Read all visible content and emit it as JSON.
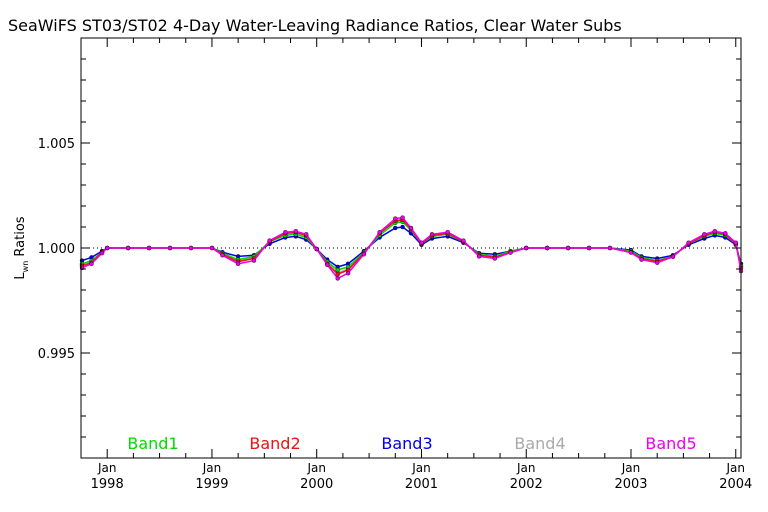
{
  "chart_data": {
    "type": "line",
    "title": "SeaWiFS ST03/ST02 4-Day Water-Leaving Radiance Ratios, Clear Water Subs",
    "ylabel": {
      "main": "L",
      "sub": "wn",
      "rest": " Ratios"
    },
    "xlabel": "",
    "ylim": [
      0.99,
      1.01
    ],
    "xlim": [
      1997.75,
      2004.05
    ],
    "yticks": [
      {
        "value": 0.995,
        "label": "0.995"
      },
      {
        "value": 1.0,
        "label": "1.000"
      },
      {
        "value": 1.005,
        "label": "1.005"
      }
    ],
    "xticks": [
      {
        "value": 1998,
        "month": "Jan",
        "year": "1998"
      },
      {
        "value": 1999,
        "month": "Jan",
        "year": "1999"
      },
      {
        "value": 2000,
        "month": "Jan",
        "year": "2000"
      },
      {
        "value": 2001,
        "month": "Jan",
        "year": "2001"
      },
      {
        "value": 2002,
        "month": "Jan",
        "year": "2002"
      },
      {
        "value": 2003,
        "month": "Jan",
        "year": "2003"
      },
      {
        "value": 2004,
        "month": "Jan",
        "year": "2004"
      }
    ],
    "reference_line": 1.0,
    "x": [
      1997.76,
      1997.85,
      1997.95,
      1998.0,
      1998.2,
      1998.4,
      1998.6,
      1998.8,
      1999.0,
      1999.1,
      1999.25,
      1999.4,
      1999.55,
      1999.7,
      1999.8,
      1999.9,
      2000.0,
      2000.1,
      2000.2,
      2000.3,
      2000.45,
      2000.6,
      2000.75,
      2000.82,
      2000.9,
      2001.0,
      2001.1,
      2001.25,
      2001.4,
      2001.55,
      2001.7,
      2001.85,
      2002.0,
      2002.2,
      2002.4,
      2002.6,
      2002.8,
      2003.0,
      2003.1,
      2003.25,
      2003.4,
      2003.55,
      2003.7,
      2003.8,
      2003.9,
      2004.0,
      2004.05
    ],
    "series": [
      {
        "name": "Band1",
        "color": "#00dd00",
        "values": [
          0.99925,
          0.9994,
          0.9998,
          1.0,
          1.0,
          1.0,
          1.0,
          1.0,
          1.0,
          0.99975,
          0.99945,
          0.9996,
          1.0003,
          1.0006,
          1.00065,
          1.0005,
          0.99995,
          0.99935,
          0.99895,
          0.9991,
          0.9998,
          1.0006,
          1.0012,
          1.00125,
          1.00085,
          1.0002,
          1.00055,
          1.00065,
          1.0003,
          0.9997,
          0.9996,
          0.99985,
          1.0,
          1.0,
          1.0,
          1.0,
          1.0,
          0.99985,
          0.99955,
          0.9994,
          0.9996,
          1.0002,
          1.00055,
          1.0007,
          1.0006,
          1.0002,
          0.99915
        ]
      },
      {
        "name": "Band2",
        "color": "#ee1111",
        "values": [
          0.99915,
          0.9993,
          0.9998,
          1.0,
          1.0,
          1.0,
          1.0,
          1.0,
          1.0,
          0.9997,
          0.99935,
          0.9995,
          1.0003,
          1.0007,
          1.00075,
          1.0006,
          0.99995,
          0.99925,
          0.99875,
          0.99895,
          0.99975,
          1.0007,
          1.0013,
          1.00135,
          1.0009,
          1.0002,
          1.0006,
          1.0007,
          1.0003,
          0.99965,
          0.99955,
          0.9998,
          1.0,
          1.0,
          1.0,
          1.0,
          1.0,
          0.9998,
          0.9995,
          0.99935,
          0.9996,
          1.0002,
          1.0006,
          1.00075,
          1.00065,
          1.0002,
          0.99905
        ]
      },
      {
        "name": "Band3",
        "color": "#0000ee",
        "values": [
          0.9994,
          0.99955,
          0.99985,
          1.0,
          1.0,
          1.0,
          1.0,
          1.0,
          1.0,
          0.9998,
          0.9996,
          0.99965,
          1.0002,
          1.0005,
          1.00055,
          1.0004,
          0.99995,
          0.99945,
          0.9991,
          0.99925,
          0.99985,
          1.0005,
          1.00095,
          1.001,
          1.0007,
          1.00015,
          1.00045,
          1.00055,
          1.00025,
          0.99975,
          0.9997,
          0.99985,
          1.0,
          1.0,
          1.0,
          1.0,
          1.0,
          0.9999,
          0.9996,
          0.9995,
          0.99965,
          1.00015,
          1.00045,
          1.0006,
          1.0005,
          1.00015,
          0.99925
        ]
      },
      {
        "name": "Band4",
        "color": "#aaaaaa",
        "values": [
          0.9992,
          0.99935,
          0.9998,
          1.0,
          1.0,
          1.0,
          1.0,
          1.0,
          1.0,
          0.9997,
          0.9994,
          0.99955,
          1.0003,
          1.00065,
          1.0007,
          1.00055,
          0.99995,
          0.9993,
          0.9988,
          0.999,
          0.9998,
          1.00065,
          1.00125,
          1.0013,
          1.00085,
          1.0002,
          1.00058,
          1.00068,
          1.0003,
          0.99968,
          0.99958,
          0.99983,
          1.0,
          1.0,
          1.0,
          1.0,
          1.0,
          0.99983,
          0.99953,
          0.99938,
          0.9996,
          1.0002,
          1.00058,
          1.00072,
          1.00062,
          1.0002,
          0.9991
        ]
      },
      {
        "name": "Band5",
        "color": "#ee00ee",
        "values": [
          0.99905,
          0.99925,
          0.99975,
          1.0,
          1.0,
          1.0,
          1.0,
          1.0,
          1.0,
          0.99965,
          0.99925,
          0.9994,
          1.00035,
          1.00075,
          1.0008,
          1.00065,
          0.99995,
          0.9992,
          0.99855,
          0.9988,
          0.9997,
          1.00075,
          1.0014,
          1.00145,
          1.00095,
          1.00025,
          1.00065,
          1.00075,
          1.00035,
          0.9996,
          0.9995,
          0.99978,
          1.0,
          1.0,
          1.0,
          1.0,
          1.0,
          0.99978,
          0.99945,
          0.9993,
          0.99958,
          1.00025,
          1.00065,
          1.0008,
          1.0007,
          1.00025,
          0.9989
        ]
      }
    ],
    "grid": false,
    "legend": "bottom-inside"
  }
}
